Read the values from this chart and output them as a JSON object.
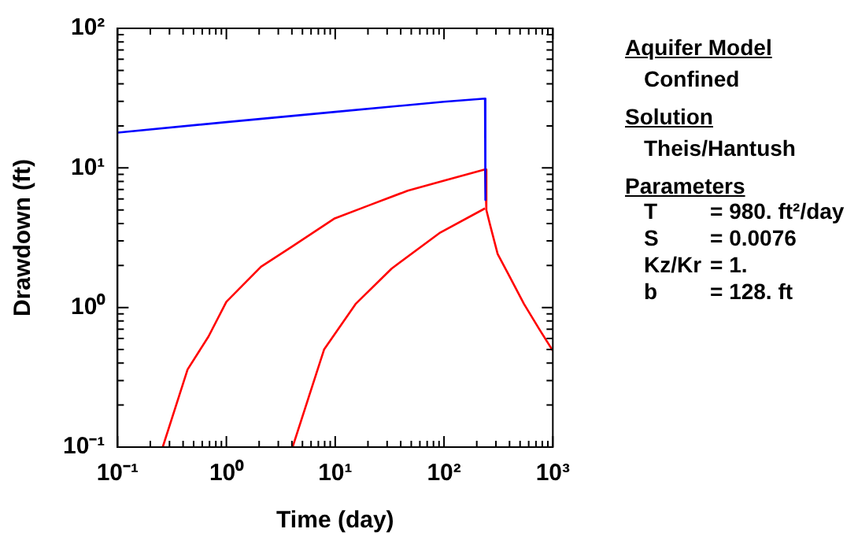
{
  "chart_data": {
    "type": "line",
    "xlabel": "Time (day)",
    "ylabel": "Drawdown (ft)",
    "log": "xy",
    "marker": "none",
    "xlim": [
      0.1,
      1000
    ],
    "ylim": [
      0.1,
      100
    ],
    "xticks": [
      {
        "value": 0.1,
        "label": "10⁻¹"
      },
      {
        "value": 0.2,
        "label": null
      },
      {
        "value": 0.3,
        "label": null
      },
      {
        "value": 0.4,
        "label": null
      },
      {
        "value": 0.5,
        "label": null
      },
      {
        "value": 0.6,
        "label": null
      },
      {
        "value": 0.7,
        "label": null
      },
      {
        "value": 0.8,
        "label": null
      },
      {
        "value": 0.9,
        "label": null
      },
      {
        "value": 1,
        "label": "10⁰"
      },
      {
        "value": 2,
        "label": null
      },
      {
        "value": 3,
        "label": null
      },
      {
        "value": 4,
        "label": null
      },
      {
        "value": 5,
        "label": null
      },
      {
        "value": 6,
        "label": null
      },
      {
        "value": 7,
        "label": null
      },
      {
        "value": 8,
        "label": null
      },
      {
        "value": 9,
        "label": null
      },
      {
        "value": 10,
        "label": "10¹"
      },
      {
        "value": 20,
        "label": null
      },
      {
        "value": 30,
        "label": null
      },
      {
        "value": 40,
        "label": null
      },
      {
        "value": 50,
        "label": null
      },
      {
        "value": 60,
        "label": null
      },
      {
        "value": 70,
        "label": null
      },
      {
        "value": 80,
        "label": null
      },
      {
        "value": 90,
        "label": null
      },
      {
        "value": 100,
        "label": "10²"
      },
      {
        "value": 200,
        "label": null
      },
      {
        "value": 300,
        "label": null
      },
      {
        "value": 400,
        "label": null
      },
      {
        "value": 500,
        "label": null
      },
      {
        "value": 600,
        "label": null
      },
      {
        "value": 700,
        "label": null
      },
      {
        "value": 800,
        "label": null
      },
      {
        "value": 900,
        "label": null
      },
      {
        "value": 1000,
        "label": "10³"
      }
    ],
    "yticks": [
      {
        "value": 0.1,
        "label": "10⁻¹"
      },
      {
        "value": 0.2,
        "label": null
      },
      {
        "value": 0.3,
        "label": null
      },
      {
        "value": 0.4,
        "label": null
      },
      {
        "value": 0.5,
        "label": null
      },
      {
        "value": 0.6,
        "label": null
      },
      {
        "value": 0.7,
        "label": null
      },
      {
        "value": 0.8,
        "label": null
      },
      {
        "value": 0.9,
        "label": null
      },
      {
        "value": 1,
        "label": "10⁰"
      },
      {
        "value": 2,
        "label": null
      },
      {
        "value": 3,
        "label": null
      },
      {
        "value": 4,
        "label": null
      },
      {
        "value": 5,
        "label": null
      },
      {
        "value": 6,
        "label": null
      },
      {
        "value": 7,
        "label": null
      },
      {
        "value": 8,
        "label": null
      },
      {
        "value": 9,
        "label": null
      },
      {
        "value": 10,
        "label": "10¹"
      },
      {
        "value": 20,
        "label": null
      },
      {
        "value": 30,
        "label": null
      },
      {
        "value": 40,
        "label": null
      },
      {
        "value": 50,
        "label": null
      },
      {
        "value": 60,
        "label": null
      },
      {
        "value": 70,
        "label": null
      },
      {
        "value": 80,
        "label": null
      },
      {
        "value": 90,
        "label": null
      },
      {
        "value": 100,
        "label": "10²"
      }
    ],
    "series": [
      {
        "color": "#0000ff",
        "x": [
          0.1,
          1,
          10,
          100,
          238,
          240
        ],
        "values": [
          17.9,
          21.3,
          25.2,
          29.8,
          31.4,
          5.9
        ]
      },
      {
        "color": "#ff0000",
        "x": [
          0.26,
          0.44,
          0.685,
          1,
          2.08,
          4,
          9.9,
          20,
          46.4,
          100,
          238,
          245,
          263,
          311,
          400,
          543,
          750,
          1000
        ],
        "values": [
          0.1,
          0.36,
          0.62,
          1.1,
          1.96,
          2.73,
          4.35,
          5.36,
          6.87,
          8.1,
          9.75,
          5.0,
          4.0,
          2.42,
          1.67,
          1.06,
          0.7,
          0.49
        ]
      },
      {
        "color": "#ff0000",
        "x": [
          4.06,
          7.9,
          15.4,
          33,
          90.6,
          238
        ],
        "values": [
          0.1,
          0.5,
          1.06,
          1.9,
          3.41,
          5.13
        ]
      }
    ],
    "annotations": [
      "Aquifer Model",
      "Confined",
      "Solution",
      "Theis/Hantush",
      "Parameters",
      "T = 980. ft²/day",
      "S = 0.0076",
      "Kz/Kr = 1.",
      "b = 128. ft"
    ]
  }
}
